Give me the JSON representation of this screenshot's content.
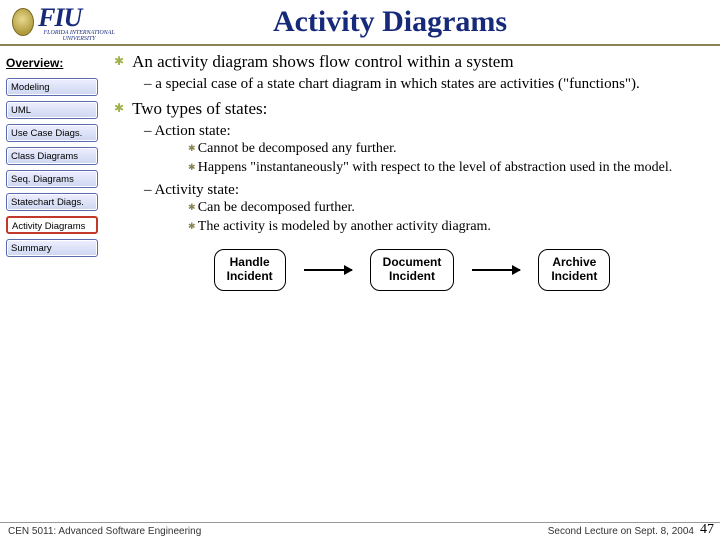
{
  "header": {
    "logo_text": "FIU",
    "logo_sub": "FLORIDA INTERNATIONAL UNIVERSITY",
    "title": "Activity Diagrams"
  },
  "sidebar": {
    "heading": "Overview:",
    "items": [
      {
        "label": "Modeling"
      },
      {
        "label": "UML"
      },
      {
        "label": "Use Case Diags."
      },
      {
        "label": "Class Diagrams"
      },
      {
        "label": "Seq. Diagrams"
      },
      {
        "label": "Statechart Diags."
      },
      {
        "label": "Activity Diagrams",
        "active": true
      },
      {
        "label": "Summary"
      }
    ]
  },
  "content": {
    "b1": "An activity diagram shows flow control within a system",
    "b1_s1": "a special case of a state chart diagram in which states are activities (\"functions\").",
    "b2": "Two types of states:",
    "b2_s1": "Action state:",
    "b2_s1_a": "Cannot be decomposed any further.",
    "b2_s1_b": "Happens \"instantaneously\" with respect to the level of abstraction used in the model.",
    "b2_s2": "Activity state:",
    "b2_s2_a": "Can be decomposed further.",
    "b2_s2_b": "The activity is modeled by another activity diagram."
  },
  "diagram": {
    "n1_l1": "Handle",
    "n1_l2": "Incident",
    "n2_l1": "Document",
    "n2_l2": "Incident",
    "n3_l1": "Archive",
    "n3_l2": "Incident"
  },
  "footer": {
    "left": "CEN 5011: Advanced Software Engineering",
    "right": "Second Lecture on Sept. 8, 2004",
    "page": "47"
  }
}
